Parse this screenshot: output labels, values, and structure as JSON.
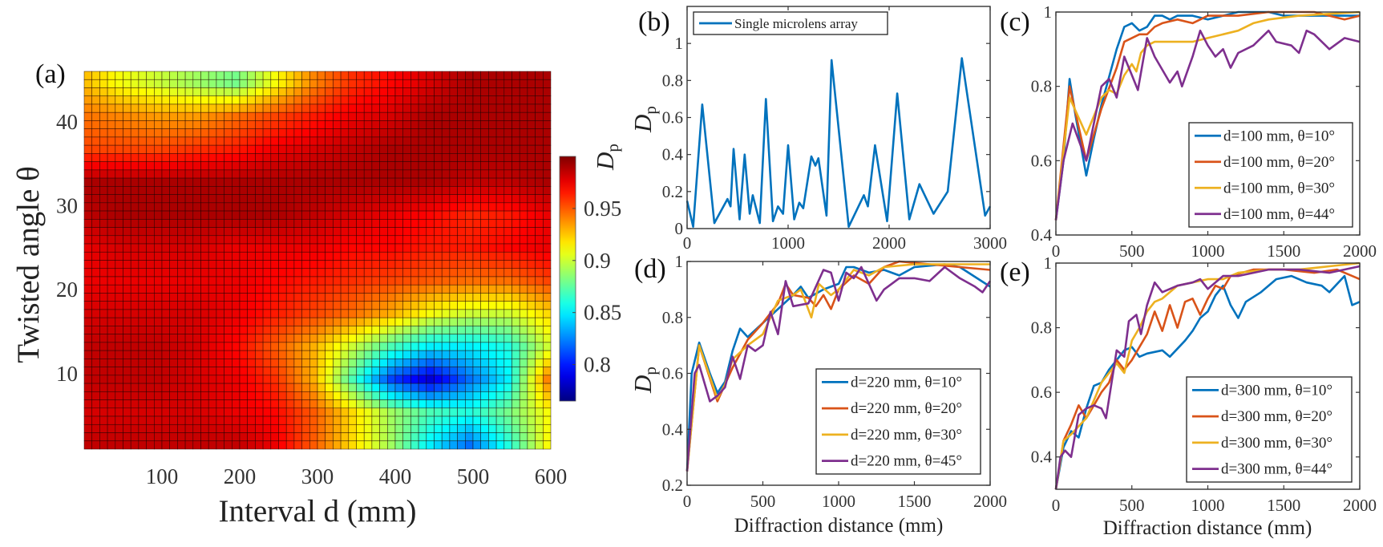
{
  "colors": {
    "blue": "#0072BD",
    "orange": "#D95319",
    "yellow": "#EDB120",
    "purple": "#7E2F8E"
  },
  "chart_data": [
    {
      "panel": "(a)",
      "type": "heatmap",
      "colormap": "jet",
      "xlabel": "Interval d (mm)",
      "ylabel": "Twisted angle θ",
      "xlim": [
        0,
        600
      ],
      "ylim": [
        1,
        46
      ],
      "xticks": [
        100,
        200,
        300,
        400,
        500,
        600
      ],
      "yticks": [
        10,
        20,
        30,
        40
      ],
      "grid_x": [
        0,
        50,
        100,
        150,
        200,
        250,
        300,
        350,
        400,
        450,
        500,
        550,
        600
      ],
      "grid_y": [
        45,
        41,
        37,
        33,
        29,
        25,
        21,
        17,
        13,
        9,
        5,
        1
      ],
      "values": [
        [
          0.93,
          0.91,
          0.9,
          0.89,
          0.88,
          0.91,
          0.94,
          0.96,
          0.97,
          0.98,
          0.99,
          0.99,
          0.99
        ],
        [
          0.945,
          0.94,
          0.935,
          0.935,
          0.945,
          0.955,
          0.965,
          0.975,
          0.98,
          0.99,
          0.99,
          0.99,
          0.99
        ],
        [
          0.955,
          0.955,
          0.955,
          0.96,
          0.965,
          0.975,
          0.98,
          0.985,
          0.99,
          0.99,
          0.99,
          0.99,
          0.99
        ],
        [
          0.99,
          0.99,
          0.99,
          0.99,
          0.99,
          0.99,
          0.99,
          0.99,
          0.99,
          0.99,
          0.985,
          0.985,
          0.99
        ],
        [
          0.985,
          0.99,
          0.99,
          0.99,
          0.99,
          0.99,
          0.985,
          0.98,
          0.975,
          0.97,
          0.962,
          0.965,
          0.975
        ],
        [
          0.975,
          0.98,
          0.98,
          0.98,
          0.975,
          0.975,
          0.975,
          0.97,
          0.97,
          0.965,
          0.965,
          0.97,
          0.975
        ],
        [
          0.975,
          0.975,
          0.975,
          0.975,
          0.975,
          0.97,
          0.965,
          0.96,
          0.955,
          0.95,
          0.945,
          0.945,
          0.955
        ],
        [
          0.98,
          0.98,
          0.98,
          0.98,
          0.975,
          0.965,
          0.955,
          0.945,
          0.93,
          0.91,
          0.9,
          0.9,
          0.92
        ],
        [
          0.985,
          0.985,
          0.985,
          0.98,
          0.97,
          0.95,
          0.93,
          0.9,
          0.87,
          0.85,
          0.85,
          0.86,
          0.9
        ],
        [
          0.985,
          0.985,
          0.985,
          0.98,
          0.975,
          0.96,
          0.93,
          0.87,
          0.81,
          0.785,
          0.82,
          0.85,
          0.94
        ],
        [
          0.98,
          0.98,
          0.98,
          0.98,
          0.975,
          0.97,
          0.95,
          0.92,
          0.89,
          0.87,
          0.86,
          0.88,
          0.91
        ],
        [
          0.985,
          0.985,
          0.985,
          0.985,
          0.985,
          0.975,
          0.95,
          0.92,
          0.89,
          0.85,
          0.82,
          0.86,
          0.91
        ]
      ],
      "colorbar": {
        "label_symbol": "D",
        "label_subscript": "p",
        "clim": [
          0.765,
          1.0
        ],
        "ticks": [
          0.8,
          0.85,
          0.9,
          0.95
        ]
      }
    },
    {
      "panel": "(b)",
      "type": "line",
      "ylabel_symbol": "D",
      "ylabel_subscript": "p",
      "xlabel": "",
      "xlim": [
        0,
        3000
      ],
      "ylim": [
        0,
        1.2
      ],
      "xticks": [
        0,
        1000,
        2000,
        3000
      ],
      "yticks": [
        0,
        0.2,
        0.4,
        0.6,
        0.8,
        1
      ],
      "legend_position": "top-left",
      "series": [
        {
          "name": "Single microlens array",
          "color": "#0072BD",
          "x": [
            0,
            60,
            150,
            270,
            400,
            430,
            460,
            520,
            570,
            620,
            650,
            720,
            780,
            850,
            900,
            950,
            1000,
            1060,
            1110,
            1150,
            1230,
            1270,
            1300,
            1380,
            1430,
            1600,
            1750,
            1790,
            1860,
            1980,
            2080,
            2200,
            2300,
            2440,
            2580,
            2720,
            2950,
            3000
          ],
          "y": [
            0.15,
            0.01,
            0.67,
            0.03,
            0.16,
            0.12,
            0.43,
            0.05,
            0.4,
            0.08,
            0.18,
            0.03,
            0.7,
            0.04,
            0.12,
            0.08,
            0.45,
            0.05,
            0.14,
            0.11,
            0.39,
            0.34,
            0.38,
            0.07,
            0.91,
            0.01,
            0.18,
            0.12,
            0.45,
            0.04,
            0.73,
            0.05,
            0.24,
            0.08,
            0.2,
            0.92,
            0.07,
            0.12
          ]
        }
      ]
    },
    {
      "panel": "(c)",
      "type": "line",
      "xlabel": "",
      "xlim": [
        0,
        2000
      ],
      "ylim": [
        0.4,
        1
      ],
      "xticks": [
        0,
        500,
        1000,
        1500,
        2000
      ],
      "yticks": [
        0.4,
        0.6,
        0.8,
        1
      ],
      "legend_position": "bottom-right",
      "series": [
        {
          "name": "d=100 mm, θ=10°",
          "color": "#0072BD",
          "x": [
            0,
            50,
            90,
            130,
            200,
            250,
            300,
            400,
            450,
            500,
            550,
            600,
            650,
            700,
            750,
            800,
            900,
            1000,
            1100,
            1200,
            1400,
            1500,
            1700,
            1900,
            2000
          ],
          "y": [
            0.44,
            0.6,
            0.82,
            0.72,
            0.56,
            0.66,
            0.75,
            0.9,
            0.96,
            0.97,
            0.95,
            0.96,
            0.99,
            0.99,
            0.98,
            0.99,
            0.99,
            0.98,
            0.99,
            1.0,
            1.0,
            0.99,
            0.99,
            0.99,
            0.99
          ]
        },
        {
          "name": "d=100 mm, θ=20°",
          "color": "#D95319",
          "x": [
            0,
            90,
            200,
            300,
            400,
            450,
            500,
            550,
            600,
            650,
            700,
            800,
            900,
            950,
            1000,
            1200,
            1400,
            1700,
            1900,
            2000
          ],
          "y": [
            0.44,
            0.8,
            0.6,
            0.74,
            0.85,
            0.92,
            0.93,
            0.94,
            0.94,
            0.96,
            0.97,
            0.98,
            0.97,
            0.98,
            0.99,
            0.99,
            1.0,
            1.0,
            0.98,
            0.99
          ]
        },
        {
          "name": "d=100 mm, θ=30°",
          "color": "#EDB120",
          "x": [
            0,
            90,
            200,
            300,
            350,
            400,
            450,
            500,
            530,
            560,
            600,
            650,
            700,
            800,
            900,
            1000,
            1100,
            1200,
            1300,
            1400,
            1600,
            2000
          ],
          "y": [
            0.44,
            0.77,
            0.67,
            0.77,
            0.79,
            0.78,
            0.83,
            0.86,
            0.84,
            0.89,
            0.91,
            0.92,
            0.92,
            0.92,
            0.92,
            0.93,
            0.94,
            0.95,
            0.97,
            0.98,
            0.99,
            1.0
          ]
        },
        {
          "name": "d=100 mm, θ=44°",
          "color": "#7E2F8E",
          "x": [
            0,
            50,
            110,
            200,
            300,
            350,
            400,
            450,
            500,
            540,
            600,
            650,
            750,
            800,
            830,
            900,
            950,
            1000,
            1050,
            1100,
            1150,
            1200,
            1300,
            1400,
            1450,
            1550,
            1600,
            1650,
            1700,
            1800,
            1900,
            2000
          ],
          "y": [
            0.44,
            0.6,
            0.7,
            0.6,
            0.8,
            0.82,
            0.77,
            0.88,
            0.83,
            0.79,
            0.93,
            0.88,
            0.81,
            0.84,
            0.8,
            0.88,
            0.95,
            0.91,
            0.88,
            0.9,
            0.85,
            0.89,
            0.91,
            0.95,
            0.92,
            0.91,
            0.89,
            0.95,
            0.94,
            0.9,
            0.93,
            0.92
          ]
        }
      ]
    },
    {
      "panel": "(d)",
      "type": "line",
      "ylabel_symbol": "D",
      "ylabel_subscript": "p",
      "xlabel": "Diffraction distance (mm)",
      "xlim": [
        0,
        2000
      ],
      "ylim": [
        0.2,
        1
      ],
      "xticks": [
        0,
        500,
        1000,
        1500,
        2000
      ],
      "yticks": [
        0.2,
        0.4,
        0.6,
        0.8,
        1
      ],
      "legend_position": "bottom-right",
      "series": [
        {
          "name": "d=220 mm, θ=10°",
          "color": "#0072BD",
          "x": [
            0,
            30,
            80,
            150,
            200,
            250,
            300,
            350,
            400,
            500,
            600,
            700,
            750,
            800,
            900,
            1000,
            1050,
            1100,
            1200,
            1300,
            1400,
            1500,
            1700,
            1800,
            2000
          ],
          "y": [
            0.25,
            0.6,
            0.71,
            0.6,
            0.53,
            0.57,
            0.68,
            0.76,
            0.73,
            0.78,
            0.83,
            0.88,
            0.91,
            0.87,
            0.9,
            0.92,
            0.98,
            0.98,
            0.96,
            0.97,
            0.95,
            0.98,
            0.99,
            0.98,
            0.91
          ]
        },
        {
          "name": "d=220 mm, θ=20°",
          "color": "#D95319",
          "x": [
            0,
            80,
            200,
            300,
            400,
            500,
            600,
            650,
            700,
            800,
            850,
            900,
            950,
            1000,
            1100,
            1200,
            1300,
            1400,
            1600,
            1800,
            2000
          ],
          "y": [
            0.25,
            0.7,
            0.5,
            0.62,
            0.72,
            0.78,
            0.85,
            0.92,
            0.88,
            0.87,
            0.84,
            0.88,
            0.83,
            0.9,
            0.95,
            0.92,
            0.98,
            1.0,
            0.99,
            0.98,
            0.97
          ]
        },
        {
          "name": "d=220 mm, θ=30°",
          "color": "#EDB120",
          "x": [
            0,
            80,
            200,
            250,
            300,
            400,
            500,
            600,
            700,
            750,
            820,
            870,
            950,
            1000,
            1100,
            1200,
            1300,
            1500,
            1800,
            2000
          ],
          "y": [
            0.25,
            0.7,
            0.51,
            0.56,
            0.65,
            0.7,
            0.74,
            0.86,
            0.88,
            0.9,
            0.8,
            0.92,
            0.88,
            0.9,
            0.97,
            0.95,
            0.98,
            0.99,
            0.99,
            0.99
          ]
        },
        {
          "name": "d=220 mm, θ=45°",
          "color": "#7E2F8E",
          "x": [
            0,
            50,
            80,
            150,
            200,
            250,
            300,
            350,
            400,
            450,
            500,
            550,
            600,
            650,
            700,
            800,
            900,
            950,
            1000,
            1050,
            1100,
            1150,
            1250,
            1300,
            1400,
            1500,
            1600,
            1700,
            1800,
            1900,
            1950,
            2000
          ],
          "y": [
            0.25,
            0.6,
            0.63,
            0.5,
            0.52,
            0.55,
            0.66,
            0.58,
            0.7,
            0.68,
            0.7,
            0.82,
            0.74,
            0.93,
            0.84,
            0.85,
            0.97,
            0.96,
            0.86,
            0.96,
            0.94,
            0.98,
            0.86,
            0.9,
            0.94,
            0.94,
            0.93,
            0.98,
            0.94,
            0.91,
            0.89,
            0.93
          ]
        }
      ]
    },
    {
      "panel": "(e)",
      "type": "line",
      "xlabel": "Diffraction distance (mm)",
      "xlim": [
        0,
        2000
      ],
      "ylim": [
        0.3,
        1
      ],
      "xticks": [
        0,
        500,
        1000,
        1500,
        2000
      ],
      "yticks": [
        0.4,
        0.6,
        0.8,
        1
      ],
      "legend_position": "bottom-right",
      "series": [
        {
          "name": "d=300 mm, θ=10°",
          "color": "#0072BD",
          "x": [
            0,
            50,
            100,
            150,
            200,
            250,
            300,
            350,
            400,
            450,
            500,
            550,
            600,
            700,
            750,
            850,
            900,
            950,
            1000,
            1050,
            1100,
            1150,
            1200,
            1250,
            1350,
            1450,
            1550,
            1650,
            1750,
            1800,
            1900,
            1950,
            2000
          ],
          "y": [
            0.3,
            0.43,
            0.48,
            0.46,
            0.55,
            0.62,
            0.63,
            0.67,
            0.7,
            0.73,
            0.74,
            0.71,
            0.72,
            0.73,
            0.71,
            0.76,
            0.79,
            0.83,
            0.85,
            0.9,
            0.93,
            0.87,
            0.83,
            0.88,
            0.91,
            0.95,
            0.96,
            0.94,
            0.93,
            0.91,
            0.96,
            0.87,
            0.88
          ]
        },
        {
          "name": "d=300 mm, θ=20°",
          "color": "#D95319",
          "x": [
            0,
            50,
            100,
            150,
            200,
            250,
            300,
            350,
            400,
            450,
            500,
            550,
            600,
            650,
            700,
            750,
            800,
            850,
            900,
            950,
            1000,
            1050,
            1100,
            1150,
            1300,
            1500,
            1700,
            1850,
            2000
          ],
          "y": [
            0.3,
            0.45,
            0.5,
            0.56,
            0.52,
            0.56,
            0.6,
            0.63,
            0.7,
            0.67,
            0.7,
            0.74,
            0.78,
            0.85,
            0.79,
            0.87,
            0.8,
            0.88,
            0.89,
            0.84,
            0.89,
            0.93,
            0.92,
            0.96,
            0.98,
            0.98,
            0.97,
            0.98,
            0.95
          ]
        },
        {
          "name": "d=300 mm, θ=30°",
          "color": "#EDB120",
          "x": [
            0,
            50,
            100,
            200,
            300,
            400,
            450,
            500,
            550,
            600,
            650,
            700,
            800,
            900,
            1000,
            1100,
            1200,
            1400,
            1600,
            1800,
            2000
          ],
          "y": [
            0.3,
            0.45,
            0.47,
            0.52,
            0.63,
            0.69,
            0.66,
            0.76,
            0.8,
            0.85,
            0.88,
            0.89,
            0.93,
            0.94,
            0.95,
            0.95,
            0.97,
            0.98,
            0.98,
            0.99,
            1.0
          ]
        },
        {
          "name": "d=300 mm, θ=44°",
          "color": "#7E2F8E",
          "x": [
            0,
            30,
            60,
            100,
            150,
            200,
            250,
            300,
            330,
            400,
            450,
            480,
            530,
            560,
            600,
            650,
            700,
            800,
            900,
            950,
            1000,
            1100,
            1200,
            1400,
            1600,
            1800,
            2000
          ],
          "y": [
            0.3,
            0.4,
            0.42,
            0.4,
            0.53,
            0.55,
            0.56,
            0.55,
            0.52,
            0.73,
            0.71,
            0.82,
            0.84,
            0.78,
            0.87,
            0.94,
            0.91,
            0.93,
            0.94,
            0.95,
            0.92,
            0.96,
            0.96,
            0.98,
            0.98,
            0.97,
            0.99
          ]
        }
      ]
    }
  ]
}
